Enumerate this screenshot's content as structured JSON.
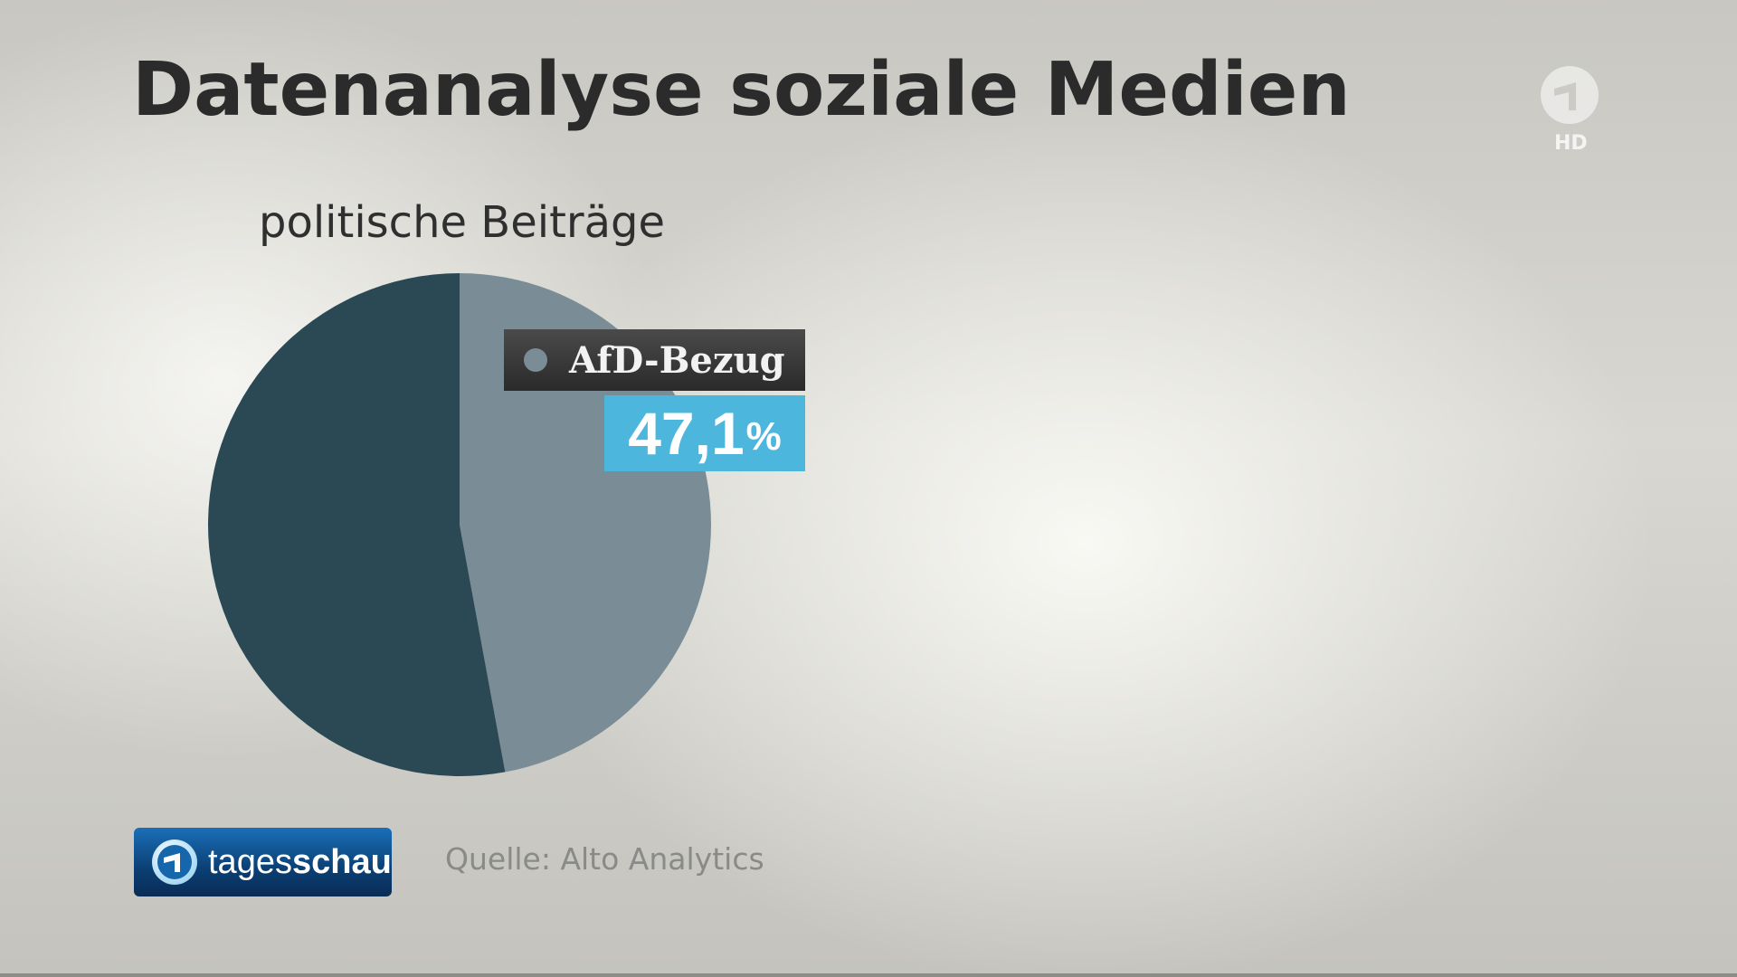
{
  "header": {
    "title": "Datenanalyse soziale Medien",
    "subtitle": "politische Beiträge"
  },
  "chart_data": {
    "type": "pie",
    "title": "politische Beiträge",
    "start_angle_deg": 0,
    "direction": "clockwise",
    "slices": [
      {
        "label": "AfD-Bezug",
        "value": 47.1,
        "color": "#7a8c96"
      },
      {
        "label": "",
        "value": 52.9,
        "color": "#2a4954"
      }
    ],
    "callout": {
      "label": "AfD-Bezug",
      "value": "47,1",
      "unit": "%",
      "dot_color": "#7a8c96",
      "value_bg_color": "#4db6dd"
    }
  },
  "footer": {
    "brand_prefix": "tages",
    "brand_suffix": "schau",
    "source": "Quelle: Alto Analytics"
  },
  "channel_logo": {
    "icon": "ard-one-icon",
    "badge": "HD"
  },
  "colors": {
    "title": "#2b2b2b",
    "brand_blue": "#0b3f74"
  }
}
